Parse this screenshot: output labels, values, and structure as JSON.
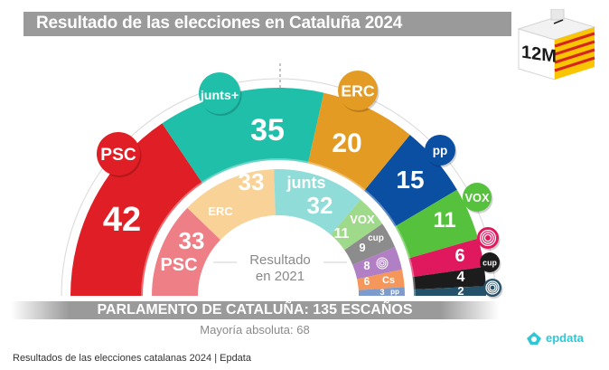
{
  "header": {
    "title": "Resultado de las elecciones en Cataluña 2024",
    "badge": "12M"
  },
  "chart_data": {
    "type": "hemicycle",
    "title": "Resultado de las elecciones en Cataluña 2024",
    "total_seats": 135,
    "majority": 68,
    "series": [
      {
        "name": "2024",
        "parties": [
          {
            "name": "PSC",
            "logo": "PSC",
            "seats": 42,
            "color": "#e01e25"
          },
          {
            "name": "Junts+",
            "logo": "junts+",
            "seats": 35,
            "color": "#1fbfaa"
          },
          {
            "name": "ERC",
            "logo": "ERC",
            "seats": 20,
            "color": "#e39b23"
          },
          {
            "name": "PP",
            "logo": "pp",
            "seats": 15,
            "color": "#0b4fa3"
          },
          {
            "name": "VOX",
            "logo": "VOX",
            "seats": 11,
            "color": "#56c13d"
          },
          {
            "name": "Comuns",
            "logo": "comuns-icon",
            "seats": 6,
            "color": "#e0185d"
          },
          {
            "name": "CUP",
            "logo": "cup",
            "seats": 4,
            "color": "#1c1c1c"
          },
          {
            "name": "Aliança Catalana",
            "logo": "ac-icon",
            "seats": 2,
            "color": "#24516a"
          }
        ]
      },
      {
        "name": "2021",
        "label_line1": "Resultado",
        "label_line2": "en 2021",
        "parties": [
          {
            "name": "PSC",
            "logo": "PSC",
            "seats": 33,
            "color": "#ef7f86"
          },
          {
            "name": "ERC",
            "logo": "ERC",
            "seats": 33,
            "color": "#f8d296"
          },
          {
            "name": "Junts",
            "logo": "junts",
            "seats": 32,
            "color": "#8fdcd8"
          },
          {
            "name": "VOX",
            "logo": "VOX",
            "seats": 11,
            "color": "#9fd98a"
          },
          {
            "name": "CUP",
            "logo": "cup",
            "seats": 9,
            "color": "#8c8c8c"
          },
          {
            "name": "Comuns",
            "logo": "comuns-icon",
            "seats": 8,
            "color": "#b07fc4"
          },
          {
            "name": "Cs",
            "logo": "Cs",
            "seats": 6,
            "color": "#f5965b"
          },
          {
            "name": "PP",
            "logo": "pp",
            "seats": 3,
            "color": "#7d9ccc"
          }
        ]
      }
    ]
  },
  "footer": {
    "parliament": "PARLAMENTO DE CATALUÑA: 135 ESCAÑOS",
    "majority": "Mayoría absoluta: 68"
  },
  "caption": "Resultados de las elecciones catalanas 2024 | Epdata",
  "brand": "epdata",
  "colors": {
    "title_bar": "#9a9a9a",
    "brand": "#2fc7d6"
  }
}
